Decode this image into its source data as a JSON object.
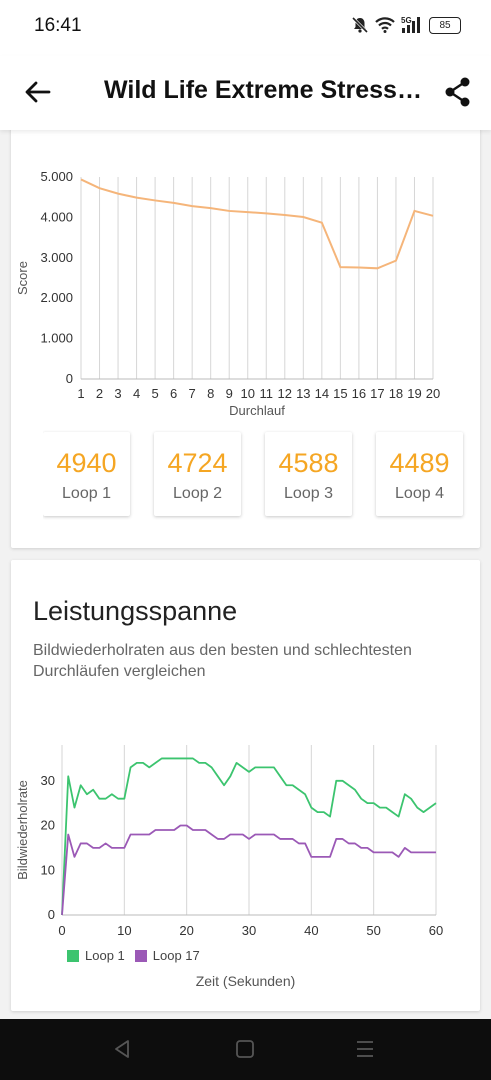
{
  "status_bar": {
    "time": "16:41",
    "network": "5G",
    "battery": "85",
    "icons": [
      "mute-icon",
      "wifi-icon",
      "signal-5g-icon",
      "battery-icon"
    ]
  },
  "app_bar": {
    "title": "Wild Life Extreme Stress Test",
    "back_icon": "arrow-left-icon",
    "share_icon": "share-icon"
  },
  "score_chart": {
    "chart_data": {
      "type": "line",
      "x": [
        1,
        2,
        3,
        4,
        5,
        6,
        7,
        8,
        9,
        10,
        11,
        12,
        13,
        14,
        15,
        16,
        17,
        18,
        19,
        20
      ],
      "series": [
        {
          "values": [
            4940,
            4724,
            4588,
            4489,
            4420,
            4360,
            4280,
            4230,
            4160,
            4130,
            4100,
            4060,
            4010,
            3870,
            2770,
            2760,
            2740,
            2930,
            4160,
            4040
          ]
        }
      ],
      "xlabel": "Durchlauf",
      "ylabel": "Score",
      "ylim": [
        0,
        5000
      ],
      "y_ticks": [
        "0",
        "1.000",
        "2.000",
        "3.000",
        "4.000",
        "5.000"
      ],
      "color": "#f5b57a",
      "grid": "vertical"
    }
  },
  "loops": [
    {
      "score": "4940",
      "label": "Loop 1"
    },
    {
      "score": "4724",
      "label": "Loop 2"
    },
    {
      "score": "4588",
      "label": "Loop 3"
    },
    {
      "score": "4489",
      "label": "Loop 4"
    }
  ],
  "performance": {
    "title": "Leistungsspanne",
    "description": "Bildwiederholraten aus den besten und schlechtesten Durchläufen vergleichen",
    "chart_data": {
      "type": "line",
      "x": [
        0,
        1,
        2,
        3,
        4,
        5,
        6,
        7,
        8,
        9,
        10,
        11,
        12,
        13,
        14,
        15,
        16,
        17,
        18,
        19,
        20,
        21,
        22,
        23,
        24,
        25,
        26,
        27,
        28,
        29,
        30,
        31,
        32,
        33,
        34,
        35,
        36,
        37,
        38,
        39,
        40,
        41,
        42,
        43,
        44,
        45,
        46,
        47,
        48,
        49,
        50,
        51,
        52,
        53,
        54,
        55,
        56,
        57,
        58,
        59,
        60
      ],
      "series": [
        {
          "name": "Loop 1",
          "color": "#3cc46f",
          "values": [
            0,
            31,
            24,
            29,
            27,
            28,
            26,
            26,
            27,
            26,
            26,
            33,
            34,
            34,
            33,
            34,
            35,
            35,
            35,
            35,
            35,
            35,
            34,
            34,
            33,
            31,
            29,
            31,
            34,
            33,
            32,
            33,
            33,
            33,
            33,
            31,
            29,
            29,
            28,
            27,
            24,
            23,
            23,
            22,
            30,
            30,
            29,
            28,
            26,
            25,
            25,
            24,
            24,
            23,
            22,
            27,
            26,
            24,
            23,
            24,
            25
          ]
        },
        {
          "name": "Loop 17",
          "color": "#9b59b6",
          "values": [
            0,
            18,
            13,
            16,
            16,
            15,
            15,
            16,
            15,
            15,
            15,
            18,
            18,
            18,
            18,
            19,
            19,
            19,
            19,
            20,
            20,
            19,
            19,
            19,
            18,
            17,
            17,
            18,
            18,
            18,
            17,
            18,
            18,
            18,
            18,
            17,
            17,
            17,
            16,
            16,
            13,
            13,
            13,
            13,
            17,
            17,
            16,
            16,
            15,
            15,
            14,
            14,
            14,
            14,
            13,
            15,
            14,
            14,
            14,
            14,
            14
          ]
        }
      ],
      "xlabel": "Zeit (Sekunden)",
      "ylabel": "Bildwiederholrate",
      "xlim": [
        0,
        60
      ],
      "ylim": [
        0,
        38
      ],
      "x_ticks": [
        0,
        10,
        20,
        30,
        40,
        50,
        60
      ],
      "y_ticks": [
        0,
        10,
        20,
        30
      ],
      "legend": "bottom-left",
      "grid": "vertical"
    }
  },
  "nav_bar": {
    "icons": [
      "back-triangle-icon",
      "home-square-icon",
      "recents-menu-icon"
    ]
  }
}
